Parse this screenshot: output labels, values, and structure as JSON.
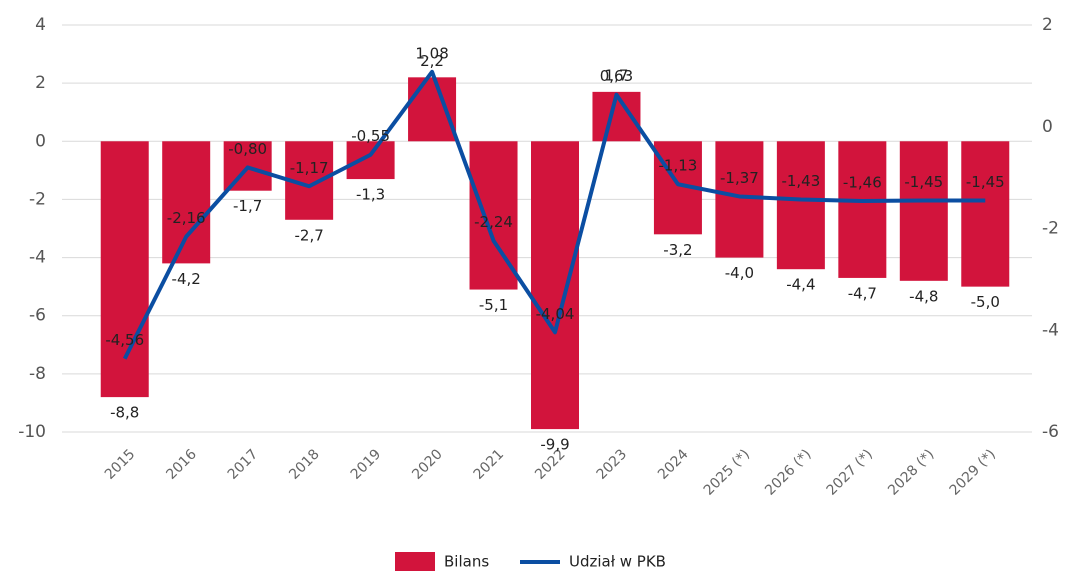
{
  "chart_data": {
    "type": "bar_line",
    "categories": [
      "2015",
      "2016",
      "2017",
      "2018",
      "2019",
      "2020",
      "2021",
      "2022",
      "2023",
      "2024",
      "2025 (*)",
      "2026 (*)",
      "2027 (*)",
      "2028 (*)",
      "2029 (*)"
    ],
    "series": [
      {
        "name": "Bilans",
        "type": "bar",
        "color": "#d2143c",
        "values": [
          -8.8,
          -4.2,
          -1.7,
          -2.7,
          -1.3,
          2.2,
          -5.1,
          -9.9,
          1.7,
          -3.2,
          -4.0,
          -4.4,
          -4.7,
          -4.8,
          -5.0
        ],
        "value_labels": [
          "-8,8",
          "-4,2",
          "-1,7",
          "-2,7",
          "-1,3",
          "2,2",
          "-5,1",
          "-9,9",
          "1,7",
          "-3,2",
          "-4,0",
          "-4,4",
          "-4,7",
          "-4,8",
          "-5,0"
        ]
      },
      {
        "name": "Udział w PKB",
        "type": "line",
        "axis": "y2",
        "color": "#0b4ea2",
        "values": [
          -4.56,
          -2.16,
          -0.8,
          -1.17,
          -0.55,
          1.08,
          -2.24,
          -4.04,
          0.63,
          -1.13,
          -1.37,
          -1.43,
          -1.46,
          -1.45,
          -1.45
        ],
        "value_labels": [
          "-4,56",
          "-2,16",
          "-0,80",
          "-1,17",
          "-0,55",
          "1,08",
          "-2,24",
          "-4,04",
          "0,63",
          "-1,13",
          "-1,37",
          "-1,43",
          "-1,46",
          "-1,45",
          "-1,45"
        ]
      }
    ],
    "ylim": [
      -10,
      4
    ],
    "yticks": [
      -10,
      -8,
      -6,
      -4,
      -2,
      0,
      2,
      4
    ],
    "y2lim": [
      -6,
      2
    ],
    "y2ticks": [
      -6,
      -4,
      -2,
      0,
      2
    ],
    "grid": true,
    "legend": "bottom"
  }
}
